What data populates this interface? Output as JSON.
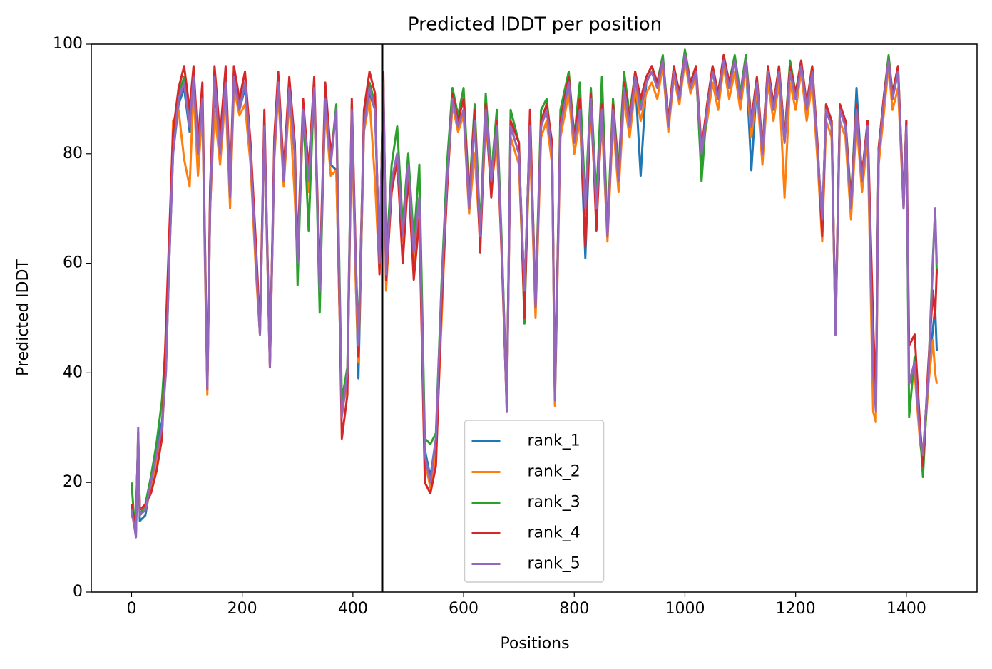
{
  "chart_data": {
    "type": "line",
    "title": "Predicted lDDT per position",
    "xlabel": "Positions",
    "ylabel": "Predicted lDDT",
    "xlim": [
      -72.75,
      1527.75
    ],
    "ylim": [
      0,
      100
    ],
    "xticks": [
      0,
      200,
      400,
      600,
      800,
      1000,
      1200,
      1400
    ],
    "yticks": [
      0,
      20,
      40,
      60,
      80,
      100
    ],
    "legend": "lower center",
    "vline": 453,
    "vline_color": "#000000",
    "x": [
      0,
      5,
      8,
      12,
      15,
      25,
      35,
      45,
      55,
      62,
      68,
      75,
      85,
      95,
      105,
      112,
      120,
      128,
      133,
      137,
      142,
      150,
      160,
      170,
      178,
      185,
      195,
      205,
      215,
      225,
      232,
      240,
      250,
      258,
      265,
      275,
      285,
      295,
      300,
      310,
      320,
      330,
      340,
      350,
      360,
      370,
      380,
      390,
      398,
      405,
      410,
      420,
      430,
      440,
      448,
      455,
      460,
      470,
      480,
      490,
      500,
      510,
      520,
      530,
      540,
      550,
      560,
      570,
      580,
      590,
      600,
      610,
      620,
      630,
      640,
      650,
      660,
      670,
      678,
      685,
      700,
      710,
      720,
      730,
      740,
      750,
      760,
      765,
      775,
      790,
      800,
      810,
      820,
      830,
      840,
      850,
      860,
      870,
      880,
      890,
      900,
      910,
      920,
      930,
      940,
      950,
      960,
      970,
      980,
      990,
      1000,
      1010,
      1020,
      1030,
      1040,
      1050,
      1060,
      1070,
      1080,
      1090,
      1100,
      1110,
      1120,
      1130,
      1140,
      1150,
      1160,
      1170,
      1180,
      1190,
      1200,
      1210,
      1220,
      1230,
      1240,
      1248,
      1255,
      1265,
      1272,
      1280,
      1290,
      1300,
      1310,
      1320,
      1330,
      1340,
      1345,
      1350,
      1360,
      1368,
      1375,
      1385,
      1395,
      1400,
      1405,
      1415,
      1425,
      1430,
      1440,
      1448,
      1452,
      1455
    ],
    "series": [
      {
        "name": "rank_1",
        "color": "#1f77b4",
        "values": [
          14,
          13,
          13,
          28,
          13,
          14,
          20,
          27,
          31,
          40,
          60,
          80,
          89,
          92,
          84,
          93,
          80,
          89,
          60,
          38,
          70,
          93,
          80,
          92,
          73,
          93,
          88,
          92,
          80,
          60,
          47,
          85,
          42,
          80,
          92,
          75,
          91,
          80,
          61,
          87,
          75,
          91,
          56,
          89,
          78,
          77,
          33,
          39,
          87,
          58,
          39,
          85,
          91,
          88,
          61,
          92,
          58,
          75,
          80,
          65,
          78,
          62,
          72,
          26,
          21,
          28,
          55,
          75,
          90,
          85,
          88,
          70,
          86,
          65,
          88,
          75,
          85,
          60,
          34,
          85,
          80,
          55,
          85,
          53,
          85,
          88,
          80,
          36,
          85,
          93,
          82,
          88,
          61,
          90,
          70,
          88,
          66,
          88,
          75,
          92,
          85,
          94,
          76,
          93,
          95,
          92,
          97,
          85,
          95,
          90,
          98,
          92,
          95,
          78,
          88,
          95,
          90,
          97,
          92,
          97,
          90,
          97,
          77,
          93,
          80,
          95,
          88,
          95,
          82,
          95,
          90,
          96,
          88,
          95,
          80,
          67,
          88,
          85,
          48,
          88,
          85,
          70,
          92,
          75,
          85,
          40,
          34,
          80,
          90,
          97,
          90,
          95,
          70,
          85,
          38,
          42,
          28,
          25,
          40,
          48,
          52,
          44
        ]
      },
      {
        "name": "rank_2",
        "color": "#ff7f0e",
        "values": [
          15,
          12,
          11,
          29,
          14,
          15,
          19,
          24,
          29,
          42,
          60,
          86,
          88,
          79,
          74,
          92,
          76,
          88,
          58,
          36,
          70,
          88,
          78,
          91,
          70,
          92,
          87,
          89,
          78,
          58,
          47,
          84,
          41,
          79,
          91,
          74,
          90,
          72,
          60,
          86,
          73,
          90,
          56,
          88,
          76,
          77,
          33,
          38,
          86,
          57,
          42,
          84,
          90,
          75,
          58,
          92,
          55,
          74,
          78,
          64,
          76,
          60,
          70,
          24,
          19,
          25,
          49,
          74,
          89,
          84,
          87,
          69,
          80,
          64,
          86,
          74,
          82,
          60,
          33,
          83,
          78,
          52,
          82,
          50,
          83,
          86,
          78,
          34,
          83,
          91,
          80,
          86,
          69,
          88,
          69,
          86,
          64,
          86,
          73,
          90,
          83,
          92,
          86,
          91,
          93,
          90,
          96,
          84,
          94,
          89,
          97,
          91,
          94,
          80,
          86,
          93,
          88,
          96,
          90,
          95,
          88,
          96,
          83,
          92,
          78,
          93,
          86,
          93,
          72,
          93,
          88,
          95,
          86,
          93,
          78,
          64,
          86,
          83,
          47,
          86,
          83,
          68,
          86,
          73,
          83,
          33,
          31,
          78,
          88,
          96,
          88,
          92,
          70,
          84,
          38,
          40,
          27,
          24,
          38,
          46,
          40,
          38
        ]
      },
      {
        "name": "rank_3",
        "color": "#2ca02c",
        "values": [
          20,
          13,
          11,
          29,
          14,
          16,
          21,
          27,
          35,
          46,
          62,
          81,
          91,
          94,
          86,
          95,
          81,
          91,
          61,
          38,
          72,
          95,
          81,
          94,
          73,
          95,
          89,
          93,
          81,
          61,
          48,
          86,
          42,
          81,
          94,
          76,
          93,
          80,
          56,
          89,
          66,
          93,
          51,
          91,
          79,
          89,
          35,
          41,
          89,
          61,
          46,
          86,
          93,
          89,
          59,
          94,
          60,
          78,
          85,
          67,
          80,
          64,
          78,
          28,
          27,
          29,
          56,
          78,
          92,
          87,
          92,
          72,
          89,
          66,
          91,
          76,
          88,
          61,
          34,
          88,
          82,
          49,
          87,
          53,
          88,
          90,
          81,
          35,
          88,
          95,
          83,
          93,
          71,
          92,
          72,
          94,
          66,
          90,
          77,
          95,
          87,
          95,
          89,
          94,
          96,
          93,
          98,
          86,
          96,
          91,
          99,
          93,
          96,
          75,
          89,
          96,
          91,
          98,
          93,
          98,
          91,
          98,
          86,
          94,
          81,
          96,
          89,
          96,
          83,
          97,
          91,
          97,
          89,
          96,
          81,
          66,
          89,
          86,
          47,
          89,
          86,
          72,
          89,
          76,
          86,
          41,
          35,
          81,
          91,
          98,
          91,
          96,
          71,
          86,
          32,
          43,
          29,
          21,
          41,
          61,
          70,
          58
        ]
      },
      {
        "name": "rank_4",
        "color": "#d62728",
        "values": [
          16,
          13,
          14,
          27,
          15,
          16,
          18,
          22,
          28,
          48,
          65,
          84,
          92,
          96,
          88,
          96,
          82,
          93,
          62,
          37,
          74,
          96,
          83,
          96,
          74,
          96,
          90,
          95,
          82,
          63,
          48,
          88,
          41,
          83,
          95,
          77,
          94,
          82,
          62,
          90,
          77,
          94,
          57,
          93,
          80,
          87,
          28,
          36,
          90,
          62,
          43,
          88,
          95,
          91,
          58,
          95,
          57,
          73,
          79,
          60,
          76,
          57,
          68,
          20,
          18,
          23,
          52,
          73,
          91,
          86,
          90,
          71,
          88,
          62,
          89,
          72,
          86,
          58,
          34,
          86,
          82,
          50,
          88,
          52,
          86,
          89,
          82,
          36,
          86,
          94,
          83,
          90,
          63,
          91,
          66,
          89,
          65,
          89,
          76,
          93,
          86,
          95,
          90,
          94,
          96,
          93,
          97,
          86,
          96,
          91,
          98,
          93,
          96,
          81,
          89,
          96,
          91,
          98,
          93,
          97,
          90,
          97,
          86,
          94,
          81,
          96,
          89,
          96,
          83,
          96,
          91,
          97,
          89,
          96,
          81,
          65,
          89,
          86,
          48,
          89,
          86,
          71,
          89,
          76,
          86,
          49,
          36,
          81,
          91,
          97,
          91,
          96,
          71,
          86,
          45,
          47,
          30,
          23,
          42,
          55,
          50,
          59
        ]
      },
      {
        "name": "rank_5",
        "color": "#9467bd",
        "values": [
          15,
          12,
          10,
          30,
          14,
          15,
          20,
          25,
          30,
          40,
          60,
          80,
          90,
          93,
          85,
          94,
          80,
          90,
          60,
          37,
          70,
          94,
          80,
          93,
          72,
          94,
          88,
          93,
          80,
          60,
          47,
          85,
          41,
          80,
          93,
          75,
          92,
          80,
          60,
          88,
          75,
          92,
          55,
          90,
          78,
          88,
          32,
          40,
          88,
          60,
          45,
          85,
          92,
          88,
          60,
          93,
          58,
          75,
          80,
          65,
          78,
          62,
          72,
          25,
          20,
          28,
          55,
          75,
          90,
          85,
          88,
          70,
          86,
          65,
          88,
          75,
          85,
          60,
          33,
          85,
          80,
          55,
          85,
          52,
          85,
          88,
          80,
          35,
          85,
          93,
          82,
          88,
          70,
          90,
          70,
          88,
          65,
          88,
          75,
          92,
          85,
          94,
          88,
          93,
          95,
          92,
          97,
          85,
          95,
          90,
          98,
          92,
          95,
          80,
          88,
          95,
          90,
          97,
          92,
          97,
          90,
          97,
          85,
          93,
          80,
          95,
          88,
          95,
          82,
          95,
          90,
          96,
          88,
          95,
          80,
          68,
          88,
          85,
          47,
          88,
          85,
          70,
          88,
          75,
          85,
          40,
          33,
          80,
          90,
          97,
          90,
          95,
          70,
          85,
          38,
          42,
          28,
          25,
          40,
          60,
          70,
          60
        ]
      }
    ]
  }
}
